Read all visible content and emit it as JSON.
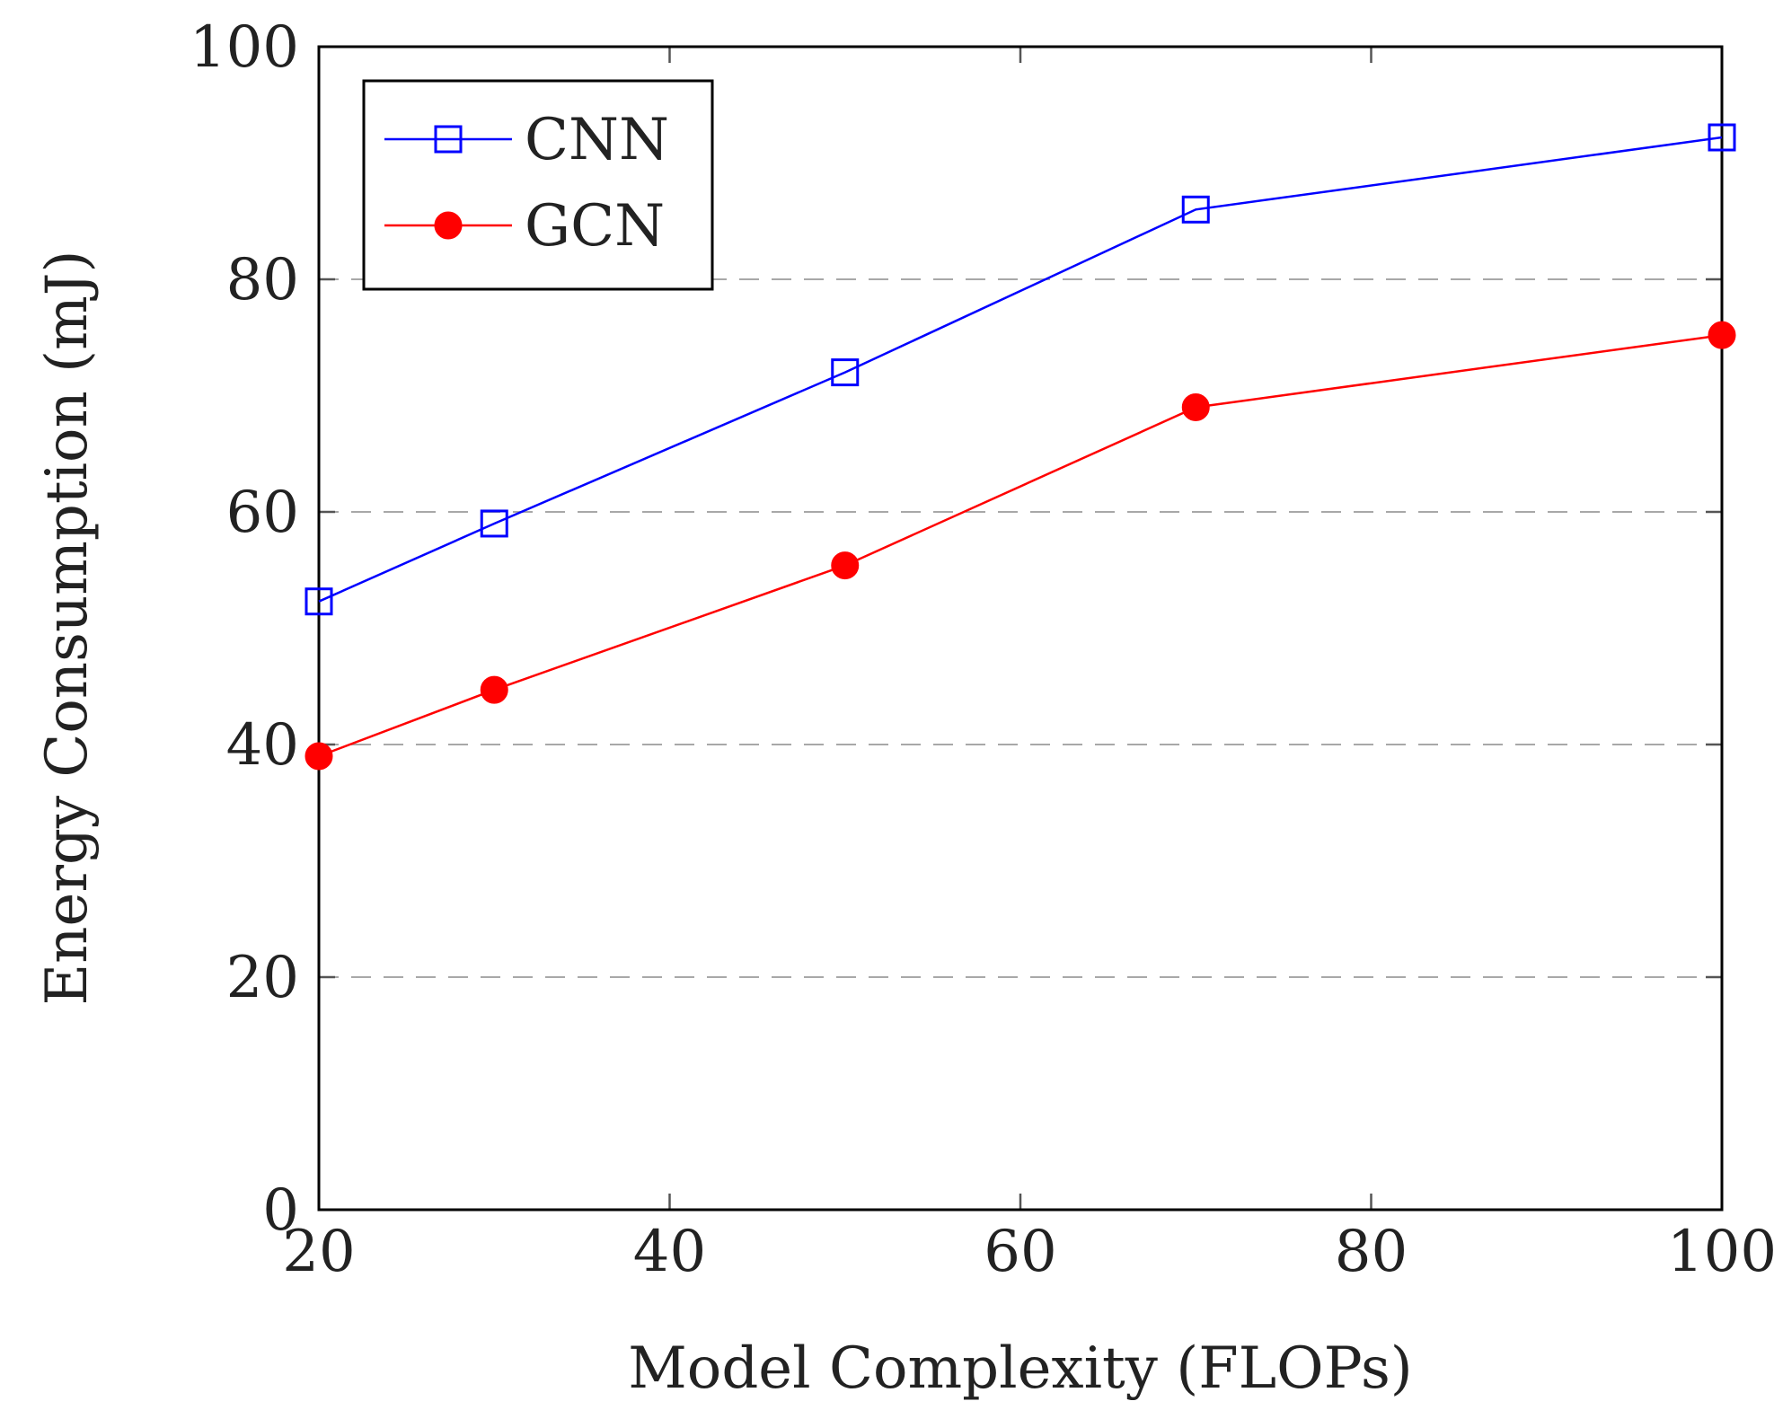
{
  "chart_data": {
    "type": "line",
    "title": "",
    "xlabel": "Model Complexity (FLOPs)",
    "ylabel": "Energy Consumption (mJ)",
    "xlim": [
      20,
      100
    ],
    "ylim": [
      0,
      100
    ],
    "xticks": [
      20,
      40,
      60,
      80,
      100
    ],
    "yticks": [
      0,
      20,
      40,
      60,
      80,
      100
    ],
    "x": [
      20,
      30,
      50,
      70,
      100
    ],
    "grid": "horizontal-dashed",
    "legend_position": "top-left",
    "series": [
      {
        "name": "CNN",
        "values": [
          52.3,
          59,
          72,
          86,
          92.2
        ],
        "color": "#0000ff",
        "marker": "open-square"
      },
      {
        "name": "GCN",
        "values": [
          39,
          44.7,
          55.4,
          69,
          75.2
        ],
        "color": "#ff0000",
        "marker": "filled-circle"
      }
    ]
  }
}
